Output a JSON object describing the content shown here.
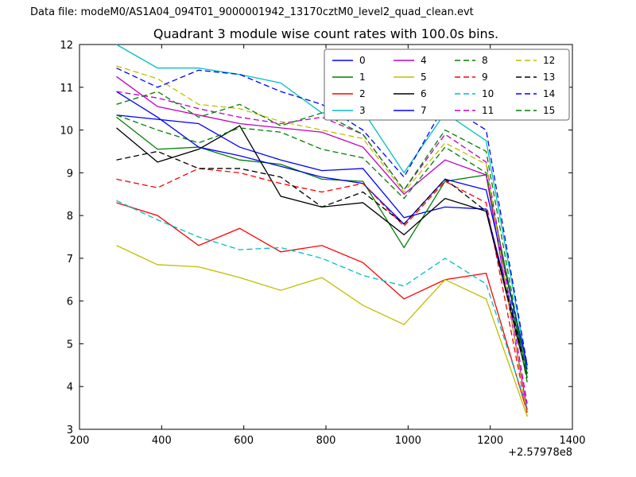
{
  "data_file_label": "Data file: modeM0/AS1A04_094T01_9000001942_13170cztM0_level2_quad_clean.evt",
  "chart_data": {
    "type": "line",
    "title": "Quadrant 3 module wise count rates with 100.0s bins.",
    "xlabel": "",
    "ylabel": "",
    "x_offset_label": "+2.57978e8",
    "xlim": [
      200,
      1400
    ],
    "ylim": [
      3,
      12
    ],
    "xticks": [
      200,
      400,
      600,
      800,
      1000,
      1200,
      1400
    ],
    "yticks": [
      3,
      4,
      5,
      6,
      7,
      8,
      9,
      10,
      11,
      12
    ],
    "grid": false,
    "legend_position": "upper right",
    "legend_columns": 4,
    "x": [
      290,
      390,
      490,
      590,
      690,
      790,
      890,
      990,
      1090,
      1190,
      1290
    ],
    "series": [
      {
        "name": "0",
        "color": "#0000ff",
        "style": "solid",
        "values": [
          10.35,
          10.25,
          10.15,
          9.6,
          9.3,
          9.05,
          9.1,
          7.95,
          8.2,
          8.15,
          4.4
        ]
      },
      {
        "name": "1",
        "color": "#007f00",
        "style": "solid",
        "values": [
          10.3,
          9.55,
          9.6,
          9.3,
          9.2,
          8.85,
          8.8,
          7.25,
          8.8,
          8.95,
          4.3
        ]
      },
      {
        "name": "2",
        "color": "#ff0000",
        "style": "solid",
        "values": [
          8.3,
          8.0,
          7.3,
          7.7,
          7.15,
          7.3,
          6.9,
          6.05,
          6.5,
          6.65,
          3.4
        ]
      },
      {
        "name": "3",
        "color": "#00bfbf",
        "style": "solid",
        "values": [
          12.0,
          11.45,
          11.45,
          11.3,
          11.1,
          10.4,
          10.45,
          9.0,
          10.4,
          9.75,
          4.45
        ]
      },
      {
        "name": "4",
        "color": "#bf00bf",
        "style": "solid",
        "values": [
          11.25,
          10.55,
          10.35,
          10.15,
          10.05,
          9.95,
          9.6,
          8.5,
          9.3,
          8.95,
          3.45
        ]
      },
      {
        "name": "5",
        "color": "#bfbf00",
        "style": "solid",
        "values": [
          7.3,
          6.85,
          6.8,
          6.55,
          6.25,
          6.55,
          5.9,
          5.45,
          6.5,
          6.05,
          3.3
        ]
      },
      {
        "name": "6",
        "color": "#000000",
        "style": "solid",
        "values": [
          10.05,
          9.25,
          9.55,
          10.1,
          8.45,
          8.2,
          8.3,
          7.55,
          8.4,
          8.1,
          4.2
        ]
      },
      {
        "name": "7",
        "color": "#0000ff",
        "style": "solid",
        "values": [
          10.9,
          10.3,
          9.6,
          9.4,
          9.15,
          8.9,
          8.75,
          7.8,
          8.85,
          8.6,
          4.5
        ]
      },
      {
        "name": "8",
        "color": "#007f00",
        "style": "dashed",
        "values": [
          10.35,
          10.0,
          9.7,
          10.05,
          9.95,
          9.55,
          9.35,
          8.4,
          9.6,
          9.0,
          4.1
        ]
      },
      {
        "name": "9",
        "color": "#ff0000",
        "style": "dashed",
        "values": [
          8.85,
          8.65,
          9.1,
          9.0,
          8.75,
          8.55,
          8.75,
          7.75,
          8.8,
          8.3,
          3.35
        ]
      },
      {
        "name": "10",
        "color": "#00bfbf",
        "style": "dashed",
        "values": [
          8.35,
          7.9,
          7.5,
          7.2,
          7.25,
          7.0,
          6.6,
          6.35,
          7.0,
          6.4,
          3.5
        ]
      },
      {
        "name": "11",
        "color": "#bf00bf",
        "style": "dashed",
        "values": [
          10.9,
          10.75,
          10.5,
          10.3,
          10.15,
          10.3,
          9.9,
          8.6,
          9.9,
          9.25,
          3.6
        ]
      },
      {
        "name": "12",
        "color": "#bfbf00",
        "style": "dashed",
        "values": [
          11.5,
          11.2,
          10.6,
          10.5,
          10.2,
          10.0,
          9.8,
          8.55,
          9.7,
          9.2,
          3.3
        ]
      },
      {
        "name": "13",
        "color": "#000000",
        "style": "dashed",
        "values": [
          9.3,
          9.5,
          9.1,
          9.1,
          8.9,
          8.2,
          8.55,
          7.8,
          8.85,
          8.1,
          4.3
        ]
      },
      {
        "name": "14",
        "color": "#0000ff",
        "style": "dashed",
        "values": [
          11.45,
          11.0,
          11.4,
          11.3,
          10.9,
          10.6,
          10.0,
          8.9,
          10.6,
          10.0,
          4.5
        ]
      },
      {
        "name": "15",
        "color": "#007f00",
        "style": "dashed",
        "values": [
          10.6,
          10.9,
          10.3,
          10.6,
          10.1,
          10.4,
          9.9,
          8.6,
          10.0,
          9.5,
          4.2
        ]
      }
    ]
  }
}
